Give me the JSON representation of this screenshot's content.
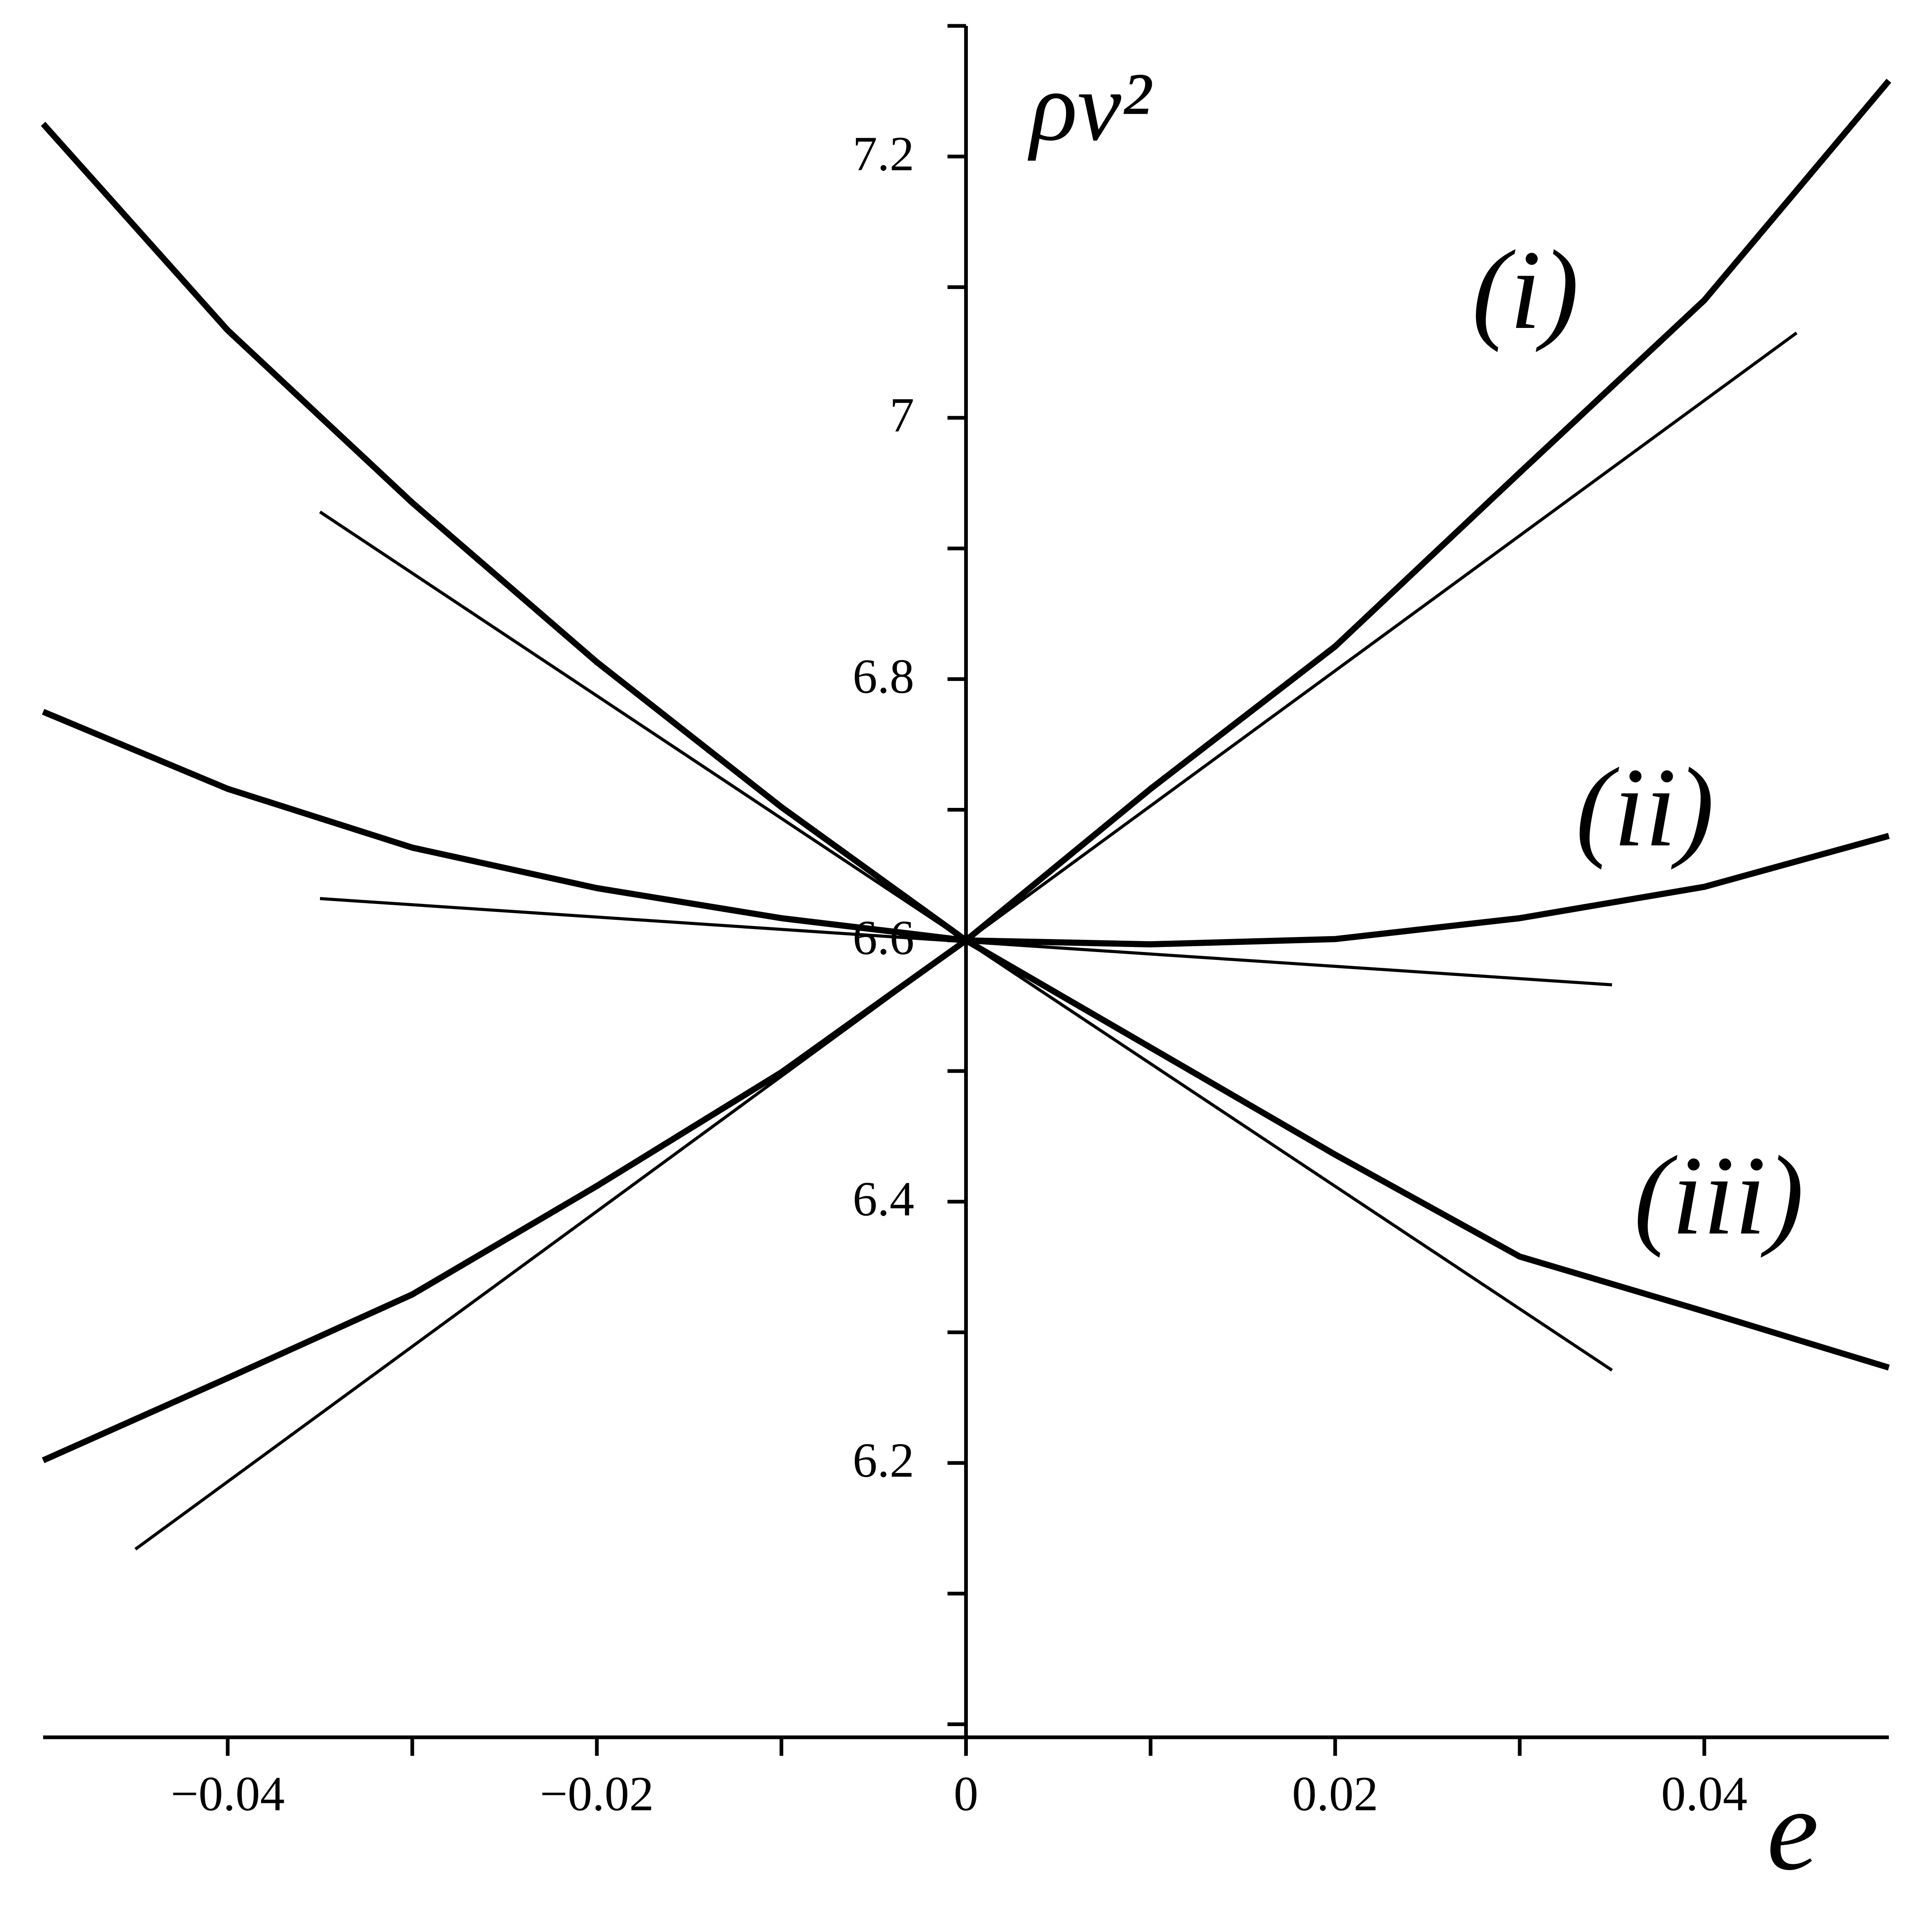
{
  "chart_data": {
    "type": "line",
    "x_label": "e",
    "y_label": "ρv²",
    "annotations": [
      "(i)",
      "(ii)",
      "(iii)"
    ],
    "xlim": [
      -0.05,
      0.05
    ],
    "ylim": [
      5.99,
      7.3
    ],
    "xticks": [
      {
        "value": -0.04,
        "label": "−0.04"
      },
      {
        "value": -0.02,
        "label": "−0.02"
      },
      0,
      0.02,
      0.04
    ],
    "xticks_minor": [
      -0.03,
      -0.01,
      0.01,
      0.03
    ],
    "yticks": [
      6.2,
      6.4,
      6.6,
      6.8,
      7,
      7.2
    ],
    "yticks_minor": [
      6.0,
      6.1,
      6.3,
      6.5,
      6.7,
      6.9,
      7.1,
      7.3
    ],
    "grid": false,
    "series": [
      {
        "color": "#000000",
        "style": "thick",
        "x": [
          -0.05,
          -0.04,
          -0.03,
          -0.02,
          -0.01,
          0,
          0.01,
          0.02,
          0.03,
          0.04,
          0.05
        ],
        "values": [
          6.202,
          6.265,
          6.329,
          6.412,
          6.499,
          6.6,
          6.716,
          6.825,
          6.958,
          7.09,
          7.258
        ]
      },
      {
        "color": "#000000",
        "style": "thick",
        "x": [
          -0.05,
          -0.04,
          -0.03,
          -0.02,
          -0.01,
          0,
          0.01,
          0.02,
          0.03,
          0.04,
          0.05
        ],
        "values": [
          6.775,
          6.716,
          6.671,
          6.64,
          6.617,
          6.6,
          6.597,
          6.601,
          6.617,
          6.641,
          6.68
        ]
      },
      {
        "color": "#000000",
        "style": "thick",
        "x": [
          -0.05,
          -0.04,
          -0.03,
          -0.02,
          -0.01,
          0,
          0.01,
          0.02,
          0.03,
          0.04,
          0.05
        ],
        "values": [
          7.225,
          7.067,
          6.935,
          6.813,
          6.702,
          6.6,
          6.518,
          6.436,
          6.358,
          6.316,
          6.273
        ]
      },
      {
        "color": "#000000",
        "style": "thin",
        "x": [
          -0.045,
          0.045
        ],
        "values": [
          6.134,
          7.065
        ]
      },
      {
        "color": "#000000",
        "style": "thin",
        "x": [
          -0.035,
          0.035
        ],
        "values": [
          6.632,
          6.566
        ]
      },
      {
        "color": "#000000",
        "style": "thin",
        "x": [
          -0.035,
          0.035
        ],
        "values": [
          6.928,
          6.271
        ]
      }
    ]
  }
}
